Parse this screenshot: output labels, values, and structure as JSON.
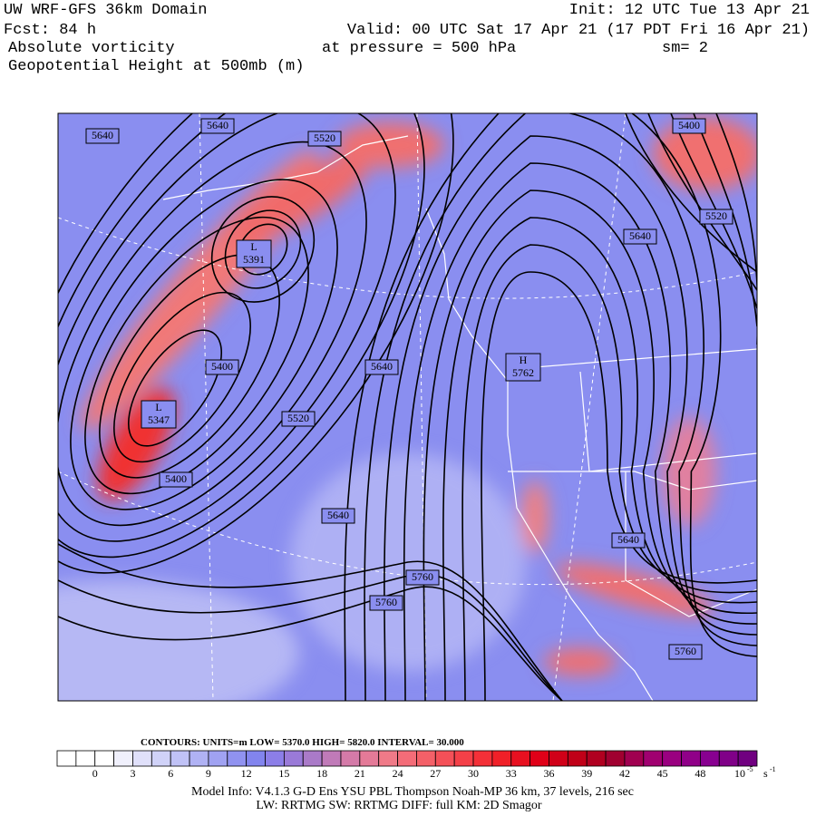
{
  "header": {
    "left": [
      "UW WRF-GFS 36km Domain",
      "Fcst:   84 h",
      "Absolute vorticity",
      "Geopotential Height at 500mb (m)"
    ],
    "right": [
      "Init: 12 UTC Tue 13 Apr 21",
      "Valid: 00 UTC Sat 17 Apr 21 (17 PDT Fri 16 Apr 21)",
      "at pressure =  500 hPa",
      "sm= 2"
    ]
  },
  "map": {
    "contour_labels": [
      "5640",
      "5640",
      "5640",
      "5640",
      "5640",
      "5640",
      "5520",
      "5520",
      "5520",
      "5400",
      "5400",
      "5400",
      "5760",
      "5760",
      "5760"
    ],
    "centers": [
      {
        "symbol": "L",
        "value": "5391"
      },
      {
        "symbol": "L",
        "value": "5347"
      },
      {
        "symbol": "H",
        "value": "5762"
      }
    ]
  },
  "legend": {
    "contours": "CONTOURS:  UNITS=m  LOW=  5370.0     HIGH=  5820.0      INTERVAL=    30.000",
    "ticks": [
      "0",
      "3",
      "6",
      "9",
      "12",
      "15",
      "18",
      "21",
      "24",
      "27",
      "30",
      "33",
      "36",
      "39",
      "42",
      "45",
      "48"
    ],
    "unit_base": "10",
    "unit_exp": "-5",
    "unit": "s",
    "unit_unit_exp": "-1"
  },
  "footer": [
    "Model Info: V4.1.3    G-D Ens YSU PBL  Thompson     Noah-MP   36 km,    37 levels,  216 sec",
    "LW: RRTMG  SW: RRTMG     DIFF: full     KM: 2D Smagor"
  ]
}
